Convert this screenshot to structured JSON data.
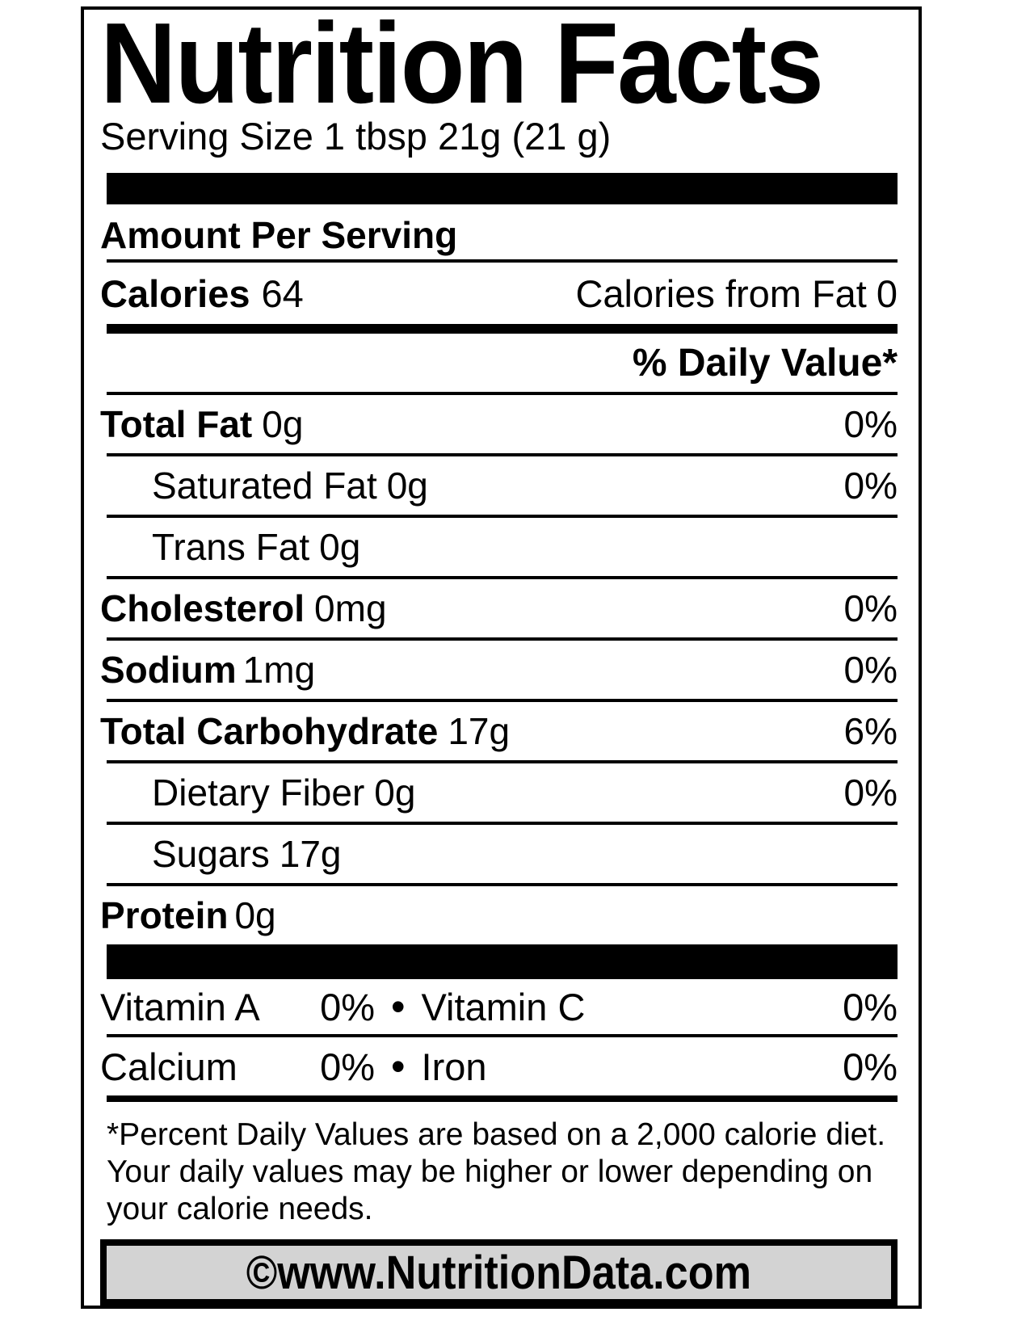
{
  "label": {
    "title": "Nutrition Facts",
    "serving_size": "Serving Size 1 tbsp 21g (21 g)",
    "amount_per_serving": "Amount Per Serving",
    "calories_label": "Calories",
    "calories_value": "64",
    "calories_from_fat_label": "Calories from Fat",
    "calories_from_fat_value": "0",
    "daily_value_header": "% Daily Value*",
    "bullet": "•",
    "footer": "©www.NutritionData.com",
    "colors": {
      "text": "#000000",
      "background": "#ffffff",
      "footer_fill": "#d3d3d3"
    }
  },
  "rows": [
    {
      "label": "Total Fat",
      "value": "0g",
      "dv": "0%"
    },
    {
      "label": "Saturated Fat",
      "value": "0g",
      "dv": "0%"
    },
    {
      "label": "Trans Fat",
      "value": "0g",
      "dv": ""
    },
    {
      "label": "Cholesterol",
      "value": "0mg",
      "dv": "0%"
    },
    {
      "label": "Sodium",
      "value": "1mg",
      "dv": "0%"
    },
    {
      "label": "Total Carbohydrate",
      "value": "17g",
      "dv": "6%"
    },
    {
      "label": "Dietary Fiber",
      "value": "0g",
      "dv": "0%"
    },
    {
      "label": "Sugars",
      "value": "17g",
      "dv": ""
    },
    {
      "label": "Protein",
      "value": "0g",
      "dv": ""
    }
  ],
  "vitamins": {
    "row1": {
      "name1": "Vitamin A",
      "dv1": "0%",
      "name2": "Vitamin C",
      "dv2": "0%"
    },
    "row2": {
      "name1": "Calcium",
      "dv1": "0%",
      "name2": "Iron",
      "dv2": "0%"
    }
  },
  "footnote": {
    "line1": "*Percent Daily Values are based on a 2,000 calorie diet.",
    "line2": "Your daily values may be higher or lower depending on",
    "line3": "your calorie needs."
  }
}
